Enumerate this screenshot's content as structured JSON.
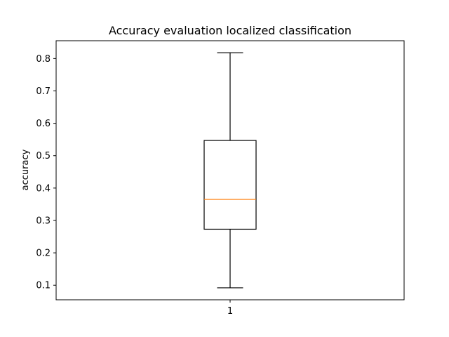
{
  "chart_data": {
    "type": "box",
    "title": "Accuracy evaluation localized classification",
    "xlabel": "",
    "ylabel": "accuracy",
    "categories": [
      "1"
    ],
    "ylim": [
      0.055,
      0.855
    ],
    "yticks": [
      0.1,
      0.2,
      0.3,
      0.4,
      0.5,
      0.6,
      0.7,
      0.8
    ],
    "ytick_labels": [
      "0.1",
      "0.2",
      "0.3",
      "0.4",
      "0.5",
      "0.6",
      "0.7",
      "0.8"
    ],
    "grid": false,
    "boxes": [
      {
        "category": "1",
        "whisker_low": 0.092,
        "q1": 0.273,
        "median": 0.365,
        "q3": 0.547,
        "whisker_high": 0.818
      }
    ],
    "colors": {
      "box": "#000000",
      "median": "#ff7f0e",
      "background": "#ffffff"
    }
  }
}
